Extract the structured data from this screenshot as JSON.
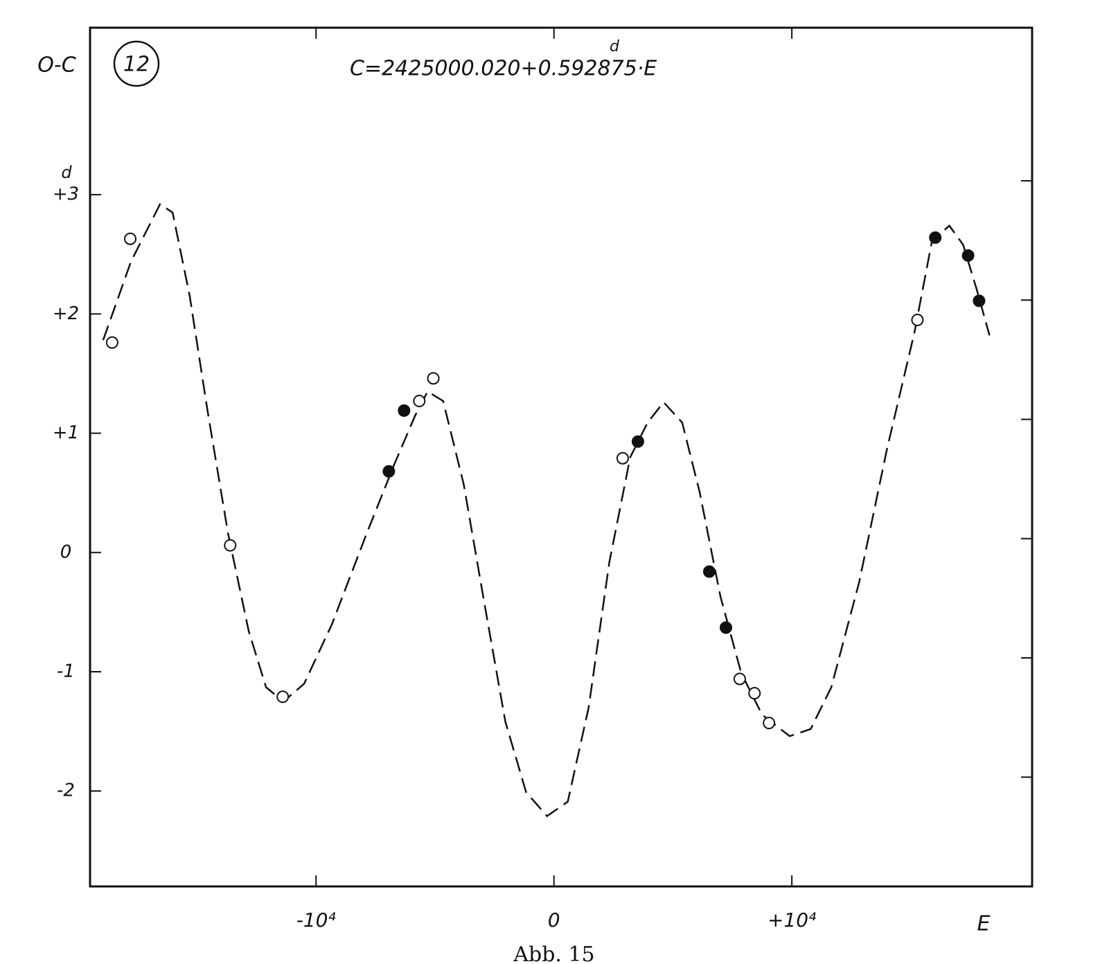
{
  "chart_data": {
    "type": "scatter",
    "title": "C=2425000.020+0.592875·E",
    "title_unit": "d",
    "panel_label": "12",
    "y_label": "O-C",
    "y_unit": "d",
    "x_label": "E",
    "caption": "Abb. 15",
    "xlim": [
      -19500,
      20100
    ],
    "ylim": [
      -2.8,
      4.4
    ],
    "xticks": [
      {
        "value": -10000,
        "label": "-10⁴"
      },
      0,
      {
        "value": 10000,
        "label": "+10⁴"
      }
    ],
    "yticks": [
      {
        "value": 3,
        "label": "+3"
      },
      {
        "value": 2,
        "label": "+2"
      },
      {
        "value": 1,
        "label": "+1"
      },
      0,
      {
        "value": -1,
        "label": "-1"
      },
      {
        "value": -2,
        "label": "-2"
      }
    ],
    "curve": {
      "color": "#111",
      "dashed": true,
      "x": [
        -18950,
        -17780,
        -16560,
        -16030,
        -15310,
        -14580,
        -13700,
        -12830,
        -12100,
        -11370,
        -10500,
        -9330,
        -7870,
        -6710,
        -5830,
        -5310,
        -4660,
        -3790,
        -2920,
        -2040,
        -1170,
        -290,
        580,
        1460,
        2330,
        3210,
        3940,
        4610,
        5390,
        6120,
        7000,
        7870,
        8750,
        9910,
        10790,
        11660,
        12830,
        13990,
        15160,
        15890,
        16620,
        17200,
        17780,
        18310
      ],
      "values": [
        1.78,
        2.44,
        2.92,
        2.85,
        2.15,
        1.21,
        0.16,
        -0.66,
        -1.13,
        -1.25,
        -1.1,
        -0.6,
        0.16,
        0.74,
        1.15,
        1.35,
        1.27,
        0.57,
        -0.43,
        -1.42,
        -2.01,
        -2.21,
        -2.09,
        -1.3,
        -0.08,
        0.8,
        1.09,
        1.26,
        1.09,
        0.51,
        -0.37,
        -1.01,
        -1.36,
        -1.54,
        -1.48,
        -1.13,
        -0.25,
        0.86,
        1.85,
        2.61,
        2.74,
        2.58,
        2.2,
        1.82
      ]
    },
    "series": [
      {
        "marker": "open",
        "color": "#111",
        "x": [
          -18570,
          -17810,
          -13610,
          -11400,
          -5660,
          -5070,
          2890,
          7810,
          8430,
          9040,
          15280
        ],
        "values": [
          1.76,
          2.63,
          0.06,
          -1.21,
          1.27,
          1.46,
          0.79,
          -1.06,
          -1.18,
          -1.43,
          1.95
        ]
      },
      {
        "marker": "filled",
        "color": "#111",
        "x": [
          -6940,
          -6300,
          3530,
          6530,
          7230,
          16030,
          17410,
          17870
        ],
        "values": [
          0.68,
          1.19,
          0.93,
          -0.16,
          -0.63,
          2.64,
          2.49,
          2.11
        ]
      }
    ]
  }
}
